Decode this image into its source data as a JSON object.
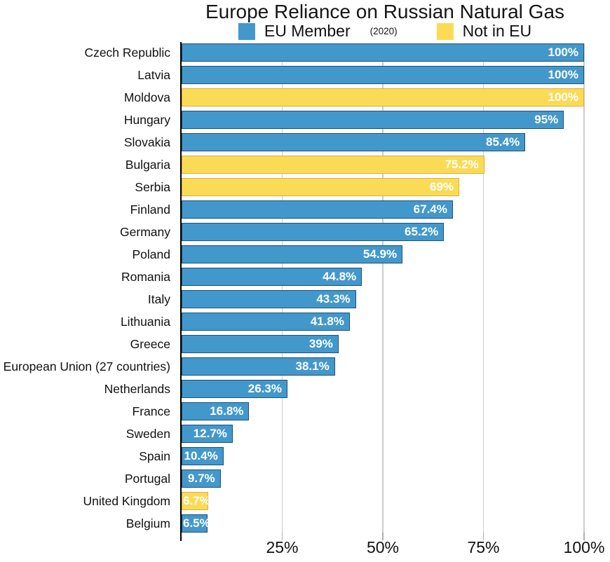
{
  "colors": {
    "eu_fill": "#4398CB",
    "eu_border": "#1D5178",
    "non_eu_fill": "#FBDB56",
    "non_eu_border": "#DFAE3F",
    "gridline": "#CCCCCC",
    "axis": "#000000",
    "tick": "#B0B0B0",
    "value_label": "#FFFFFF"
  },
  "chart_data": {
    "type": "bar",
    "orientation": "horizontal",
    "title": "Europe Reliance on Russian Natural Gas",
    "year_note": "(2020)",
    "xlabel": "",
    "ylabel": "",
    "xlim": [
      0,
      100
    ],
    "grid": true,
    "legend_position": "top",
    "legend": [
      {
        "name": "EU Member",
        "color": "#4398CB"
      },
      {
        "name": "Not in EU",
        "color": "#FBDB56"
      }
    ],
    "x_ticks": [
      {
        "value": 25,
        "label": "25%"
      },
      {
        "value": 50,
        "label": "50%"
      },
      {
        "value": 75,
        "label": "75%"
      },
      {
        "value": 100,
        "label": "100%"
      }
    ],
    "bars": [
      {
        "country": "Czech Republic",
        "value": 100,
        "label": "100%",
        "group": "EU Member"
      },
      {
        "country": "Latvia",
        "value": 100,
        "label": "100%",
        "group": "EU Member"
      },
      {
        "country": "Moldova",
        "value": 100,
        "label": "100%",
        "group": "Not in EU"
      },
      {
        "country": "Hungary",
        "value": 95,
        "label": "95%",
        "group": "EU Member"
      },
      {
        "country": "Slovakia",
        "value": 85.4,
        "label": "85.4%",
        "group": "EU Member"
      },
      {
        "country": "Bulgaria",
        "value": 75.2,
        "label": "75.2%",
        "group": "Not in EU"
      },
      {
        "country": "Serbia",
        "value": 69,
        "label": "69%",
        "group": "Not in EU"
      },
      {
        "country": "Finland",
        "value": 67.4,
        "label": "67.4%",
        "group": "EU Member"
      },
      {
        "country": "Germany",
        "value": 65.2,
        "label": "65.2%",
        "group": "EU Member"
      },
      {
        "country": "Poland",
        "value": 54.9,
        "label": "54.9%",
        "group": "EU Member"
      },
      {
        "country": "Romania",
        "value": 44.8,
        "label": "44.8%",
        "group": "EU Member"
      },
      {
        "country": "Italy",
        "value": 43.3,
        "label": "43.3%",
        "group": "EU Member"
      },
      {
        "country": "Lithuania",
        "value": 41.8,
        "label": "41.8%",
        "group": "EU Member"
      },
      {
        "country": "Greece",
        "value": 39,
        "label": "39%",
        "group": "EU Member"
      },
      {
        "country": "European Union (27 countries)",
        "value": 38.1,
        "label": "38.1%",
        "group": "EU Member"
      },
      {
        "country": "Netherlands",
        "value": 26.3,
        "label": "26.3%",
        "group": "EU Member"
      },
      {
        "country": "France",
        "value": 16.8,
        "label": "16.8%",
        "group": "EU Member"
      },
      {
        "country": "Sweden",
        "value": 12.7,
        "label": "12.7%",
        "group": "EU Member"
      },
      {
        "country": "Spain",
        "value": 10.4,
        "label": "10.4%",
        "group": "EU Member"
      },
      {
        "country": "Portugal",
        "value": 9.7,
        "label": "9.7%",
        "group": "EU Member"
      },
      {
        "country": "United Kingdom",
        "value": 6.7,
        "label": "6.7%",
        "group": "Not in EU"
      },
      {
        "country": "Belgium",
        "value": 6.5,
        "label": "6.5%",
        "group": "EU Member"
      }
    ]
  }
}
